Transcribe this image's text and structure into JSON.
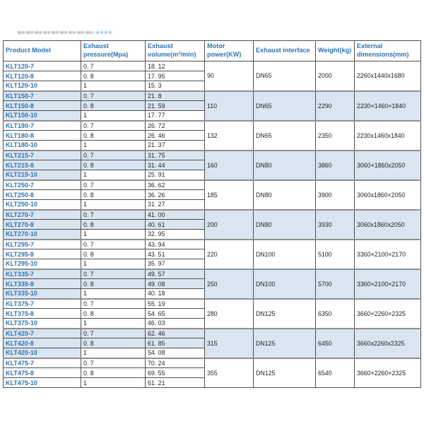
{
  "colors": {
    "header_text": "#2e74b5",
    "model_text": "#2e74b5",
    "highlight_row": "#d9e5f1",
    "border": "#4f4f4f"
  },
  "table": {
    "headers": [
      "Product Model",
      "Exhaust pressure(Mpa)",
      "Exhaust volume(m³/min)",
      "Motor power(KW)",
      "Exhaust interface",
      "Weight(kg)",
      "External dimensions(mm)"
    ],
    "groups": [
      {
        "highlight": false,
        "power": "90",
        "interface": "DN65",
        "weight": "2000",
        "dimensions": "2260x1440x1680",
        "rows": [
          [
            "KLT120-7",
            "0. 7",
            "18. 12"
          ],
          [
            "KLT120-8",
            "0. 8",
            "17. 95"
          ],
          [
            "KLT120-10",
            "1",
            "15. 3"
          ]
        ]
      },
      {
        "highlight": true,
        "power": "110",
        "interface": "DN65",
        "weight": "2290",
        "dimensions": "2230×1460×1840",
        "rows": [
          [
            "KLT150-7",
            "0. 7",
            "21. 8"
          ],
          [
            "KLT150-8",
            "0. 8",
            "21. 59"
          ],
          [
            "KLT150-10",
            "1",
            "17. 77"
          ]
        ]
      },
      {
        "highlight": false,
        "power": "132",
        "interface": "DN65",
        "weight": "2350",
        "dimensions": "2230x1460x1840",
        "rows": [
          [
            "KLT180-7",
            "0. 7",
            "26. 72"
          ],
          [
            "KLT180-8",
            "0. 8",
            "26. 46"
          ],
          [
            "KLT180-10",
            "1",
            "21. 37"
          ]
        ]
      },
      {
        "highlight": true,
        "power": "160",
        "interface": "DN80",
        "weight": "3860",
        "dimensions": "3060×1860x2050",
        "rows": [
          [
            "KLT215-7",
            "0. 7",
            "31. 75"
          ],
          [
            "KLT215-8",
            "0. 8",
            "31. 44"
          ],
          [
            "KLT215-10",
            "1",
            "25. 91"
          ]
        ]
      },
      {
        "highlight": false,
        "power": "185",
        "interface": "DN80",
        "weight": "3900",
        "dimensions": "3060x1860×2050",
        "rows": [
          [
            "KLT250-7",
            "0. 7",
            "36. 62"
          ],
          [
            "KLT250-8",
            "0. 8",
            "36. 26"
          ],
          [
            "KLT250-10",
            "1",
            "31. 27"
          ]
        ]
      },
      {
        "highlight": true,
        "power": "200",
        "interface": "DN80",
        "weight": "3930",
        "dimensions": "3060x1860x2050",
        "rows": [
          [
            "KLT270-7",
            "0. 7",
            "41. 00"
          ],
          [
            "KLT270-8",
            "0. 8",
            "40. 61"
          ],
          [
            "KLT270-10",
            "1",
            "32. 95"
          ]
        ]
      },
      {
        "highlight": false,
        "power": "220",
        "interface": "DN100",
        "weight": "5100",
        "dimensions": "3360×2100×2170",
        "rows": [
          [
            "KLT295-7",
            "0. 7",
            "43. 94"
          ],
          [
            "KLT295-8",
            "0. 8",
            "43. 51"
          ],
          [
            "KLT295-10",
            "1",
            "35. 97"
          ]
        ]
      },
      {
        "highlight": true,
        "power": "250",
        "interface": "DN100",
        "weight": "5700",
        "dimensions": "3360×2100×2170",
        "rows": [
          [
            "KLT335-7",
            "0. 7",
            "49. 57"
          ],
          [
            "KLT335-8",
            "0. 8",
            "49. 08"
          ],
          [
            "KLT335-10",
            "1",
            "40. 18"
          ]
        ]
      },
      {
        "highlight": false,
        "power": "280",
        "interface": "DN125",
        "weight": "6350",
        "dimensions": "3660×2260×2325",
        "rows": [
          [
            "KLT375-7",
            "0. 7",
            "55. 19"
          ],
          [
            "KLT375-8",
            "0. 8",
            "54. 65"
          ],
          [
            "KLT375-10",
            "1",
            "46. 03"
          ]
        ]
      },
      {
        "highlight": true,
        "power": "315",
        "interface": "DN125",
        "weight": "6450",
        "dimensions": "3660x2260x2325",
        "rows": [
          [
            "KLT420-7",
            "0. 7",
            "62. 46"
          ],
          [
            "KLT420-8",
            "0. 8",
            "61. 85"
          ],
          [
            "KLT420-10",
            "1",
            "54. 08"
          ]
        ]
      },
      {
        "highlight": false,
        "power": "355",
        "interface": "DN125",
        "weight": "6540",
        "dimensions": "3660×2260×2325",
        "rows": [
          [
            "KLT475-7",
            "0. 7",
            "70. 24"
          ],
          [
            "KLT475-8",
            "0. 8",
            "69. 55"
          ],
          [
            "KLT475-10",
            "1",
            "61. 21"
          ]
        ]
      }
    ]
  }
}
